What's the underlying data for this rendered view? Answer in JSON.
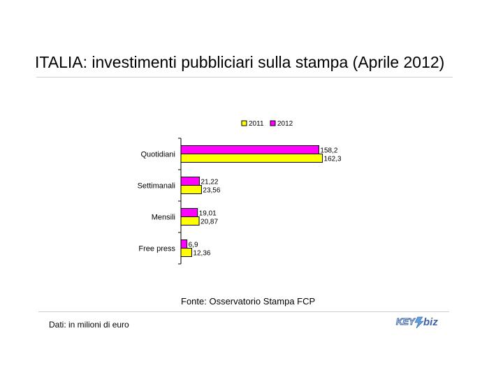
{
  "page": {
    "title": "ITALIA: investimenti pubbliciari sulla stampa (Aprile 2012)",
    "source": "Fonte: Osservatorio Stampa FCP",
    "note": "Dati: in milioni di euro",
    "logo_text": "KEY4biz"
  },
  "chart_data": {
    "type": "bar",
    "orientation": "horizontal",
    "title": "",
    "xlabel": "",
    "ylabel": "",
    "categories": [
      "Quotidiani",
      "Settimanali",
      "Mensili",
      "Free press"
    ],
    "series": [
      {
        "name": "2011",
        "color": "#ffff00",
        "values": [
          162.3,
          23.56,
          20.87,
          12.36
        ],
        "labels": [
          "162,3",
          "23,56",
          "20,87",
          "12,36"
        ]
      },
      {
        "name": "2012",
        "color": "#ff00ff",
        "values": [
          158.2,
          21.22,
          19.01,
          6.9
        ],
        "labels": [
          "158,2",
          "21,22",
          "19,01",
          "6,9"
        ]
      }
    ],
    "legend": "top",
    "grid": false,
    "xlim": [
      0,
      200
    ]
  }
}
